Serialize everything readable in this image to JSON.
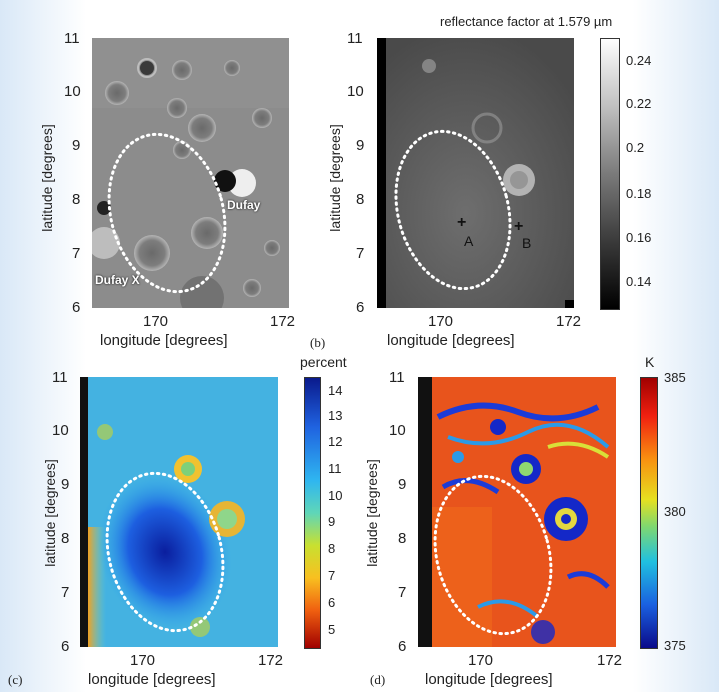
{
  "panels": {
    "a": {
      "ylabel": "latitude [degrees]",
      "xlabel": "longitude [degrees]",
      "yticks": [
        "11",
        "10",
        "9",
        "8",
        "7",
        "6"
      ],
      "xticks": [
        "170",
        "172"
      ],
      "annotations": {
        "dufay": "Dufay",
        "dufay_x": "Dufay X"
      }
    },
    "b": {
      "label": "(b)",
      "ylabel": "latitude [degrees]",
      "xlabel": "longitude [degrees]",
      "yticks": [
        "11",
        "10",
        "9",
        "8",
        "7",
        "6"
      ],
      "xticks": [
        "170",
        "172"
      ],
      "colorbar_title": "reflectance factor at 1.579 µm",
      "colorbar_ticks": [
        "0.24",
        "0.22",
        "0.2",
        "0.18",
        "0.16",
        "0.14"
      ],
      "points": {
        "a": "A",
        "b": "B"
      },
      "point_marker": "+"
    },
    "c": {
      "label": "(c)",
      "ylabel": "latitude [degrees]",
      "xlabel": "longitude [degrees]",
      "yticks": [
        "11",
        "10",
        "9",
        "8",
        "7",
        "6"
      ],
      "xticks": [
        "170",
        "172"
      ],
      "colorbar_title": "percent",
      "colorbar_ticks": [
        "14",
        "13",
        "12",
        "11",
        "10",
        "9",
        "8",
        "7",
        "6",
        "5"
      ]
    },
    "d": {
      "label": "(d)",
      "ylabel": "latitude [degrees]",
      "xlabel": "longitude [degrees]",
      "yticks": [
        "11",
        "10",
        "9",
        "8",
        "7",
        "6"
      ],
      "xticks": [
        "170",
        "172"
      ],
      "colorbar_title": "K",
      "colorbar_ticks": [
        "385",
        "380",
        "375"
      ]
    }
  }
}
